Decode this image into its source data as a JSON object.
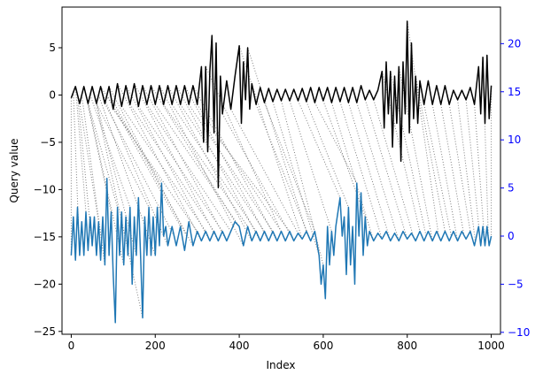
{
  "chart_data": {
    "type": "line",
    "title": "",
    "xlabel": "Index",
    "ylabel": "Query value",
    "ylabel_right": "",
    "xlim": [
      -22,
      1022
    ],
    "ylim": [
      -25.3,
      9.3
    ],
    "ylim_right": [
      -10.2,
      23.8
    ],
    "x_ticks": [
      0,
      200,
      400,
      600,
      800,
      1000
    ],
    "y_ticks": [
      -25,
      -20,
      -15,
      -10,
      -5,
      0,
      5
    ],
    "y_ticks_right": [
      -10,
      -5,
      0,
      5,
      10,
      15,
      20
    ],
    "grid": false,
    "legend": "none",
    "colors": {
      "query": "#000000",
      "reference": "#1f77b4",
      "right_axis": "#0000ff",
      "alignment": "#808080"
    },
    "series": [
      {
        "axis": "left",
        "color": "#000000",
        "description_points": [
          [
            0,
            -0.3
          ],
          [
            10,
            0.9
          ],
          [
            20,
            -0.9
          ],
          [
            30,
            0.9
          ],
          [
            40,
            -0.9
          ],
          [
            50,
            0.9
          ],
          [
            60,
            -0.9
          ],
          [
            70,
            0.9
          ],
          [
            80,
            -0.9
          ],
          [
            90,
            0.9
          ],
          [
            100,
            -1.5
          ],
          [
            110,
            1.2
          ],
          [
            120,
            -1.2
          ],
          [
            130,
            1.0
          ],
          [
            140,
            -1.0
          ],
          [
            150,
            1.2
          ],
          [
            160,
            -1.2
          ],
          [
            170,
            1.0
          ],
          [
            180,
            -1.0
          ],
          [
            190,
            1.0
          ],
          [
            200,
            -1.0
          ],
          [
            210,
            1.0
          ],
          [
            220,
            -1.0
          ],
          [
            230,
            1.0
          ],
          [
            240,
            -1.0
          ],
          [
            250,
            1.0
          ],
          [
            260,
            -1.0
          ],
          [
            270,
            1.0
          ],
          [
            280,
            -1.0
          ],
          [
            290,
            1.0
          ],
          [
            300,
            -1.0
          ],
          [
            310,
            3.0
          ],
          [
            315,
            -5.0
          ],
          [
            320,
            3.0
          ],
          [
            325,
            -6.0
          ],
          [
            330,
            2.5
          ],
          [
            335,
            6.3
          ],
          [
            340,
            -4.0
          ],
          [
            345,
            5.5
          ],
          [
            350,
            -9.8
          ],
          [
            355,
            2.0
          ],
          [
            360,
            -2.0
          ],
          [
            370,
            1.5
          ],
          [
            380,
            -1.5
          ],
          [
            390,
            2.0
          ],
          [
            400,
            5.2
          ],
          [
            405,
            -3.0
          ],
          [
            410,
            3.5
          ],
          [
            415,
            -0.5
          ],
          [
            420,
            5.0
          ],
          [
            425,
            -1.5
          ],
          [
            430,
            1.2
          ],
          [
            440,
            -1.0
          ],
          [
            450,
            0.8
          ],
          [
            460,
            -0.8
          ],
          [
            470,
            0.7
          ],
          [
            480,
            -0.7
          ],
          [
            490,
            0.6
          ],
          [
            500,
            -0.6
          ],
          [
            510,
            0.6
          ],
          [
            520,
            -0.6
          ],
          [
            530,
            0.6
          ],
          [
            540,
            -0.6
          ],
          [
            550,
            0.7
          ],
          [
            560,
            -0.7
          ],
          [
            570,
            0.8
          ],
          [
            580,
            -0.8
          ],
          [
            590,
            0.8
          ],
          [
            600,
            -0.6
          ],
          [
            610,
            0.8
          ],
          [
            620,
            -0.8
          ],
          [
            630,
            0.8
          ],
          [
            640,
            -0.7
          ],
          [
            650,
            0.8
          ],
          [
            660,
            -0.8
          ],
          [
            670,
            0.8
          ],
          [
            680,
            -0.8
          ],
          [
            690,
            1.0
          ],
          [
            700,
            -0.5
          ],
          [
            710,
            0.5
          ],
          [
            720,
            -0.5
          ],
          [
            730,
            0.5
          ],
          [
            740,
            2.5
          ],
          [
            745,
            -3.5
          ],
          [
            750,
            3.5
          ],
          [
            755,
            -2.0
          ],
          [
            760,
            2.5
          ],
          [
            765,
            -5.5
          ],
          [
            770,
            2.0
          ],
          [
            775,
            -3.0
          ],
          [
            780,
            3.0
          ],
          [
            785,
            -7.0
          ],
          [
            790,
            3.5
          ],
          [
            795,
            -2.0
          ],
          [
            800,
            7.8
          ],
          [
            805,
            -4.0
          ],
          [
            810,
            5.5
          ],
          [
            815,
            -2.5
          ],
          [
            820,
            2.0
          ],
          [
            825,
            -3.0
          ],
          [
            830,
            1.5
          ],
          [
            840,
            -1.0
          ],
          [
            850,
            1.5
          ],
          [
            860,
            -1.0
          ],
          [
            870,
            1.0
          ],
          [
            880,
            -1.0
          ],
          [
            890,
            1.0
          ],
          [
            900,
            -1.0
          ],
          [
            910,
            0.5
          ],
          [
            920,
            -0.5
          ],
          [
            930,
            0.5
          ],
          [
            940,
            -0.5
          ],
          [
            950,
            0.8
          ],
          [
            960,
            -1.0
          ],
          [
            970,
            3.0
          ],
          [
            975,
            -2.0
          ],
          [
            980,
            4.0
          ],
          [
            985,
            -3.0
          ],
          [
            990,
            4.2
          ],
          [
            995,
            -2.5
          ],
          [
            1000,
            1.0
          ]
        ]
      },
      {
        "axis": "right",
        "color": "#1f77b4",
        "description_points": [
          [
            0,
            -2.0
          ],
          [
            5,
            2.0
          ],
          [
            10,
            -2.5
          ],
          [
            15,
            3.0
          ],
          [
            20,
            -2.0
          ],
          [
            25,
            1.5
          ],
          [
            30,
            -2.0
          ],
          [
            35,
            2.5
          ],
          [
            40,
            -1.5
          ],
          [
            45,
            2.0
          ],
          [
            50,
            -1.0
          ],
          [
            55,
            2.0
          ],
          [
            60,
            -2.0
          ],
          [
            65,
            1.5
          ],
          [
            70,
            -2.5
          ],
          [
            75,
            2.0
          ],
          [
            80,
            -3.0
          ],
          [
            85,
            6.0
          ],
          [
            90,
            -2.0
          ],
          [
            95,
            2.5
          ],
          [
            100,
            -4.0
          ],
          [
            105,
            -9.0
          ],
          [
            110,
            3.0
          ],
          [
            115,
            -2.0
          ],
          [
            120,
            2.5
          ],
          [
            125,
            -3.0
          ],
          [
            130,
            2.0
          ],
          [
            135,
            -2.0
          ],
          [
            140,
            3.0
          ],
          [
            145,
            -5.0
          ],
          [
            150,
            2.0
          ],
          [
            155,
            -2.0
          ],
          [
            160,
            4.0
          ],
          [
            165,
            -2.0
          ],
          [
            170,
            -8.5
          ],
          [
            175,
            2.0
          ],
          [
            180,
            -2.0
          ],
          [
            185,
            3.0
          ],
          [
            190,
            -2.0
          ],
          [
            195,
            2.0
          ],
          [
            200,
            -2.0
          ],
          [
            205,
            3.0
          ],
          [
            210,
            -1.0
          ],
          [
            215,
            5.5
          ],
          [
            220,
            0.0
          ],
          [
            225,
            1.0
          ],
          [
            230,
            -1.0
          ],
          [
            240,
            1.0
          ],
          [
            250,
            -1.0
          ],
          [
            260,
            1.0
          ],
          [
            270,
            -1.5
          ],
          [
            280,
            1.5
          ],
          [
            290,
            -1.0
          ],
          [
            300,
            0.5
          ],
          [
            310,
            -0.5
          ],
          [
            320,
            0.5
          ],
          [
            330,
            -0.5
          ],
          [
            340,
            0.5
          ],
          [
            350,
            -0.5
          ],
          [
            360,
            0.5
          ],
          [
            370,
            -0.5
          ],
          [
            380,
            0.5
          ],
          [
            390,
            1.5
          ],
          [
            400,
            1.0
          ],
          [
            410,
            -1.0
          ],
          [
            420,
            1.0
          ],
          [
            430,
            -0.5
          ],
          [
            440,
            0.5
          ],
          [
            450,
            -0.5
          ],
          [
            460,
            0.5
          ],
          [
            470,
            -0.5
          ],
          [
            480,
            0.5
          ],
          [
            490,
            -0.5
          ],
          [
            500,
            0.5
          ],
          [
            510,
            -0.5
          ],
          [
            520,
            0.5
          ],
          [
            530,
            -0.5
          ],
          [
            540,
            0.3
          ],
          [
            550,
            -0.3
          ],
          [
            560,
            0.5
          ],
          [
            570,
            -0.5
          ],
          [
            580,
            0.5
          ],
          [
            590,
            -2.0
          ],
          [
            595,
            -5.0
          ],
          [
            600,
            -3.0
          ],
          [
            605,
            -6.5
          ],
          [
            610,
            1.0
          ],
          [
            615,
            -3.0
          ],
          [
            620,
            0.5
          ],
          [
            625,
            -2.0
          ],
          [
            630,
            1.0
          ],
          [
            640,
            4.0
          ],
          [
            645,
            0.0
          ],
          [
            650,
            2.0
          ],
          [
            655,
            -4.0
          ],
          [
            660,
            3.0
          ],
          [
            665,
            -3.0
          ],
          [
            670,
            1.0
          ],
          [
            675,
            -5.0
          ],
          [
            680,
            5.5
          ],
          [
            685,
            0.0
          ],
          [
            690,
            4.5
          ],
          [
            695,
            -2.0
          ],
          [
            700,
            2.0
          ],
          [
            705,
            -1.0
          ],
          [
            710,
            0.5
          ],
          [
            720,
            -0.5
          ],
          [
            730,
            0.3
          ],
          [
            740,
            -0.3
          ],
          [
            750,
            0.5
          ],
          [
            760,
            -0.5
          ],
          [
            770,
            0.3
          ],
          [
            780,
            -0.5
          ],
          [
            790,
            0.5
          ],
          [
            800,
            -0.3
          ],
          [
            810,
            0.3
          ],
          [
            820,
            -0.5
          ],
          [
            830,
            0.5
          ],
          [
            840,
            -0.5
          ],
          [
            850,
            0.5
          ],
          [
            860,
            -0.5
          ],
          [
            870,
            0.5
          ],
          [
            880,
            -0.5
          ],
          [
            890,
            0.5
          ],
          [
            900,
            -0.5
          ],
          [
            910,
            0.5
          ],
          [
            920,
            -0.5
          ],
          [
            930,
            0.5
          ],
          [
            940,
            -0.3
          ],
          [
            950,
            0.5
          ],
          [
            960,
            -1.0
          ],
          [
            970,
            1.0
          ],
          [
            975,
            -1.0
          ],
          [
            980,
            1.0
          ],
          [
            985,
            -1.0
          ],
          [
            990,
            1.0
          ],
          [
            995,
            -1.0
          ],
          [
            1000,
            0.0
          ]
        ]
      }
    ],
    "alignment_lines": {
      "color": "#808080",
      "style": "dotted",
      "pairs": [
        [
          0,
          0
        ],
        [
          5,
          20
        ],
        [
          10,
          35
        ],
        [
          15,
          50
        ],
        [
          20,
          65
        ],
        [
          25,
          80
        ],
        [
          30,
          95
        ],
        [
          35,
          110
        ],
        [
          40,
          125
        ],
        [
          45,
          140
        ],
        [
          50,
          155
        ],
        [
          55,
          170
        ],
        [
          60,
          185
        ],
        [
          65,
          200
        ],
        [
          70,
          215
        ],
        [
          75,
          230
        ],
        [
          80,
          245
        ],
        [
          85,
          260
        ],
        [
          90,
          275
        ],
        [
          95,
          290
        ],
        [
          100,
          300
        ],
        [
          110,
          310
        ],
        [
          120,
          320
        ],
        [
          130,
          330
        ],
        [
          140,
          340
        ],
        [
          150,
          350
        ],
        [
          160,
          360
        ],
        [
          170,
          370
        ],
        [
          180,
          380
        ],
        [
          190,
          390
        ],
        [
          200,
          400
        ],
        [
          210,
          410
        ],
        [
          220,
          420
        ],
        [
          230,
          430
        ],
        [
          240,
          440
        ],
        [
          250,
          450
        ],
        [
          260,
          460
        ],
        [
          270,
          470
        ],
        [
          280,
          480
        ],
        [
          290,
          490
        ],
        [
          300,
          500
        ],
        [
          320,
          510
        ],
        [
          340,
          520
        ],
        [
          360,
          530
        ],
        [
          380,
          540
        ],
        [
          400,
          550
        ],
        [
          420,
          560
        ],
        [
          440,
          570
        ],
        [
          460,
          580
        ],
        [
          480,
          590
        ],
        [
          500,
          600
        ],
        [
          520,
          620
        ],
        [
          540,
          640
        ],
        [
          560,
          660
        ],
        [
          580,
          680
        ],
        [
          600,
          700
        ],
        [
          620,
          720
        ],
        [
          640,
          740
        ],
        [
          660,
          760
        ],
        [
          680,
          780
        ],
        [
          700,
          800
        ],
        [
          720,
          815
        ],
        [
          740,
          830
        ],
        [
          760,
          845
        ],
        [
          780,
          860
        ],
        [
          800,
          875
        ],
        [
          820,
          890
        ],
        [
          840,
          905
        ],
        [
          860,
          920
        ],
        [
          880,
          935
        ],
        [
          900,
          950
        ],
        [
          920,
          962
        ],
        [
          940,
          975
        ],
        [
          960,
          985
        ],
        [
          980,
          993
        ],
        [
          1000,
          1000
        ]
      ]
    }
  }
}
